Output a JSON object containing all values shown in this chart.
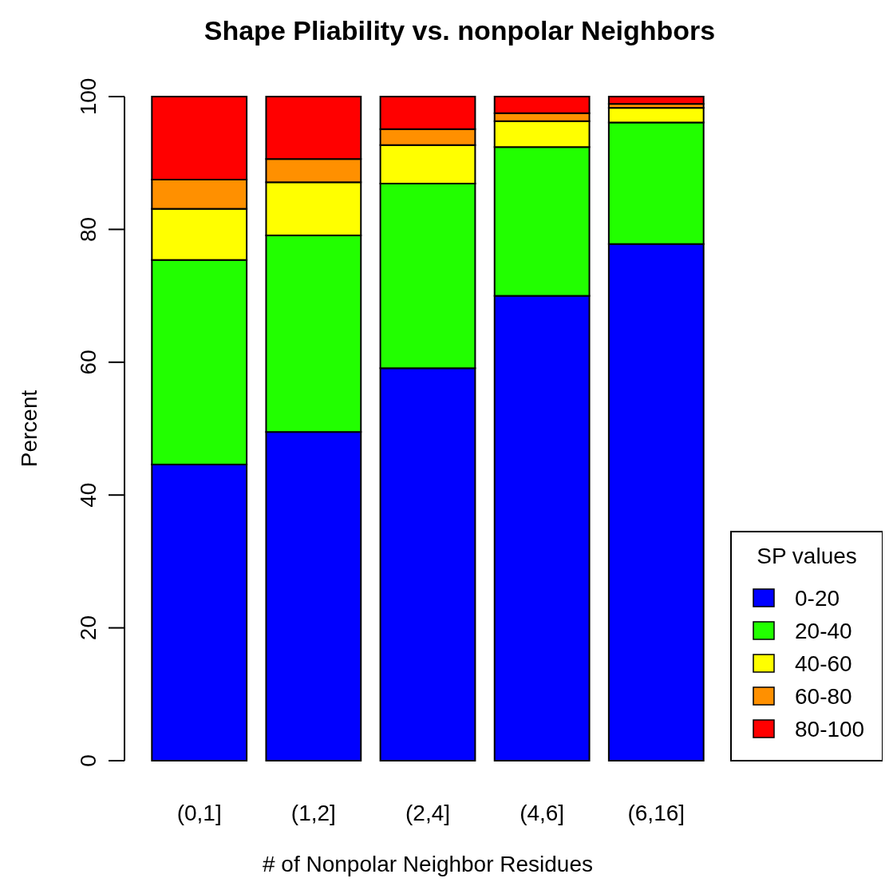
{
  "chart_data": {
    "type": "bar",
    "title": "Shape Pliability vs. nonpolar Neighbors",
    "xlabel": "# of Nonpolar Neighbor Residues",
    "ylabel": "Percent",
    "legend_title": "SP values",
    "categories": [
      "(0,1]",
      "(1,2]",
      "(2,4]",
      "(4,6]",
      "(6,16]"
    ],
    "stacked": true,
    "ylim": [
      0,
      100
    ],
    "yticks": [
      0,
      20,
      40,
      60,
      80,
      100
    ],
    "grid": false,
    "legend": "right",
    "series": [
      {
        "name": "0-20",
        "color": "#0000ff",
        "values": [
          44.6,
          49.5,
          59.1,
          70.0,
          77.8
        ]
      },
      {
        "name": "20-40",
        "color": "#22ff00",
        "values": [
          30.8,
          29.6,
          27.8,
          22.4,
          18.3
        ]
      },
      {
        "name": "40-60",
        "color": "#ffff00",
        "values": [
          7.7,
          8.0,
          5.8,
          3.9,
          2.2
        ]
      },
      {
        "name": "60-80",
        "color": "#ff9000",
        "values": [
          4.4,
          3.5,
          2.4,
          1.2,
          0.6
        ]
      },
      {
        "name": "80-100",
        "color": "#ff0000",
        "values": [
          12.5,
          9.4,
          4.9,
          2.5,
          1.1
        ]
      }
    ]
  }
}
